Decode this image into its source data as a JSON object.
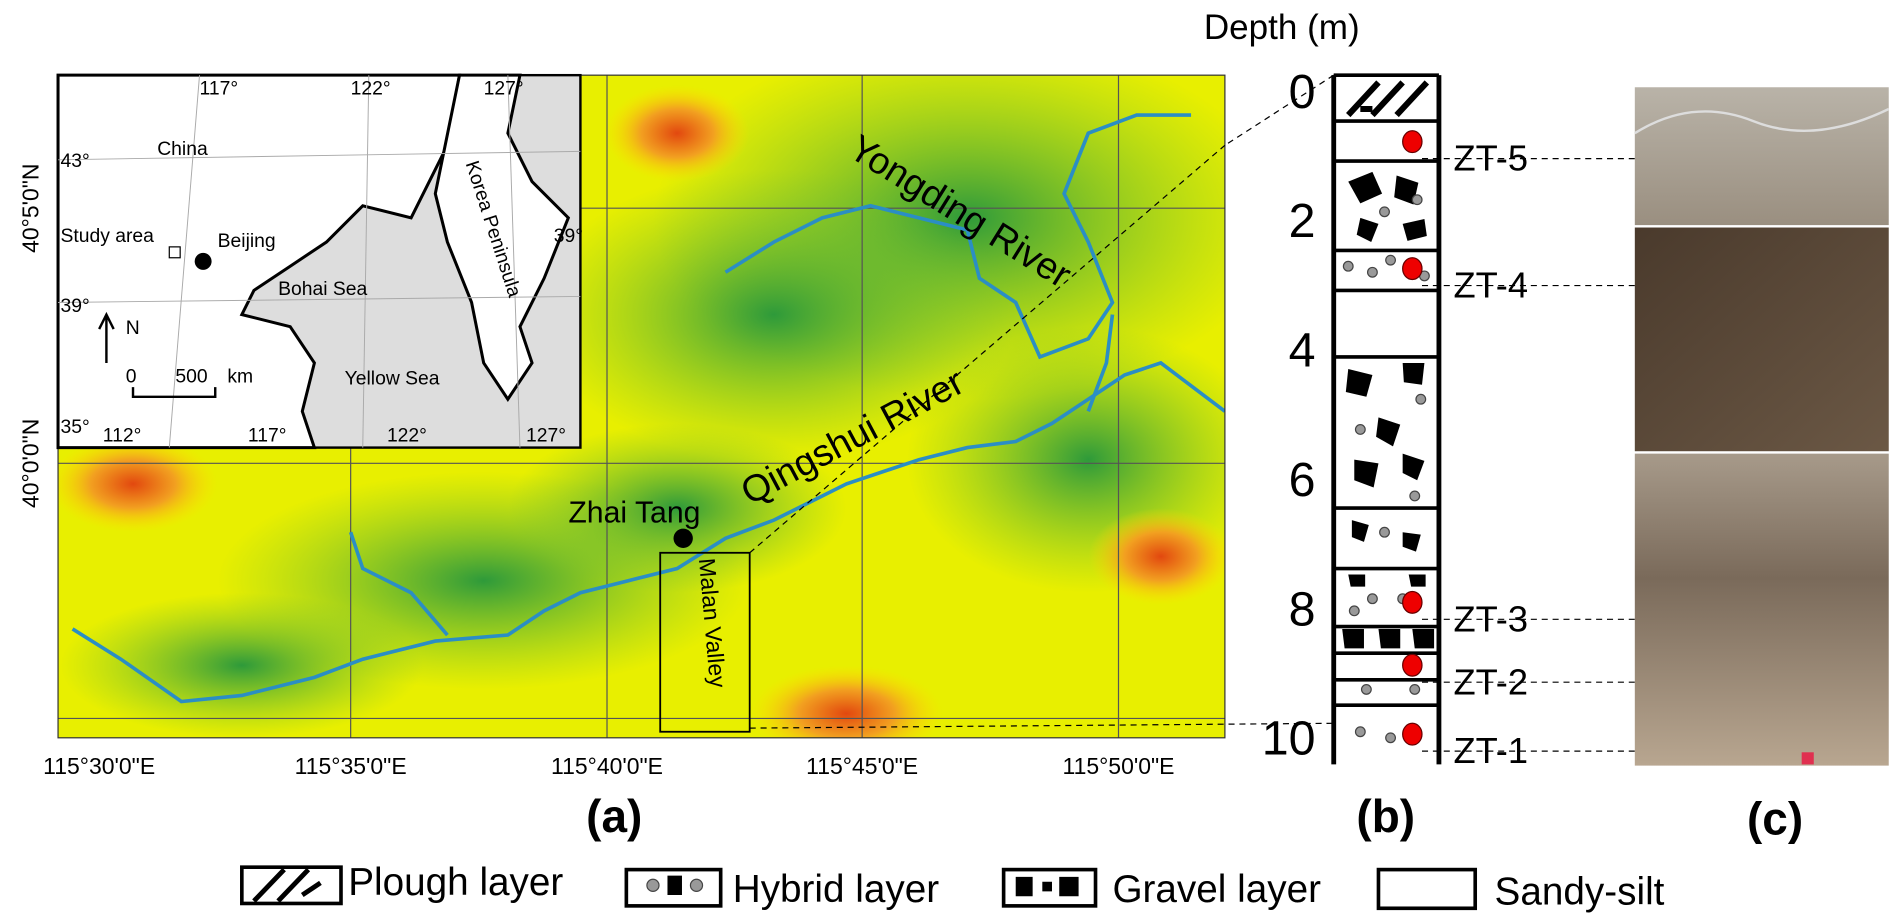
{
  "map": {
    "panel_label": "(a)",
    "x_labels": [
      "115°30'0\"E",
      "115°35'0\"E",
      "115°40'0\"E",
      "115°45'0\"E",
      "115°50'0\"E"
    ],
    "y_labels": [
      "40°5'0\"N",
      "40°0'0\"N"
    ],
    "rivers": [
      "Yongding River",
      "Qingshui River"
    ],
    "site": "Zhai Tang",
    "valley": "Malan Valley",
    "inset": {
      "top_labels": [
        "117°",
        "122°",
        "127°"
      ],
      "bottom_labels": [
        "112°",
        "117°",
        "122°",
        "127°"
      ],
      "left_labels": [
        "43°",
        "39°",
        "35°"
      ],
      "right_label": "39°",
      "china": "China",
      "study_area": "Study area",
      "beijing": "Beijing",
      "bohai": "Bohai Sea",
      "korea": "Korea Peninsula",
      "yellow": "Yellow Sea",
      "north": "N",
      "scale_start": "0",
      "scale_end": "500",
      "scale_unit": "km"
    }
  },
  "column": {
    "panel_label": "(b)",
    "axis_title": "Depth (m)",
    "depth_ticks": [
      0,
      2,
      4,
      6,
      8,
      10
    ],
    "samples": [
      "ZT-5",
      "ZT-4",
      "ZT-3",
      "ZT-2",
      "ZT-1"
    ]
  },
  "photos": {
    "panel_label": "(c)"
  },
  "legend": [
    "Plough layer",
    "Hybrid layer",
    "Gravel layer",
    "Sandy-silt"
  ]
}
